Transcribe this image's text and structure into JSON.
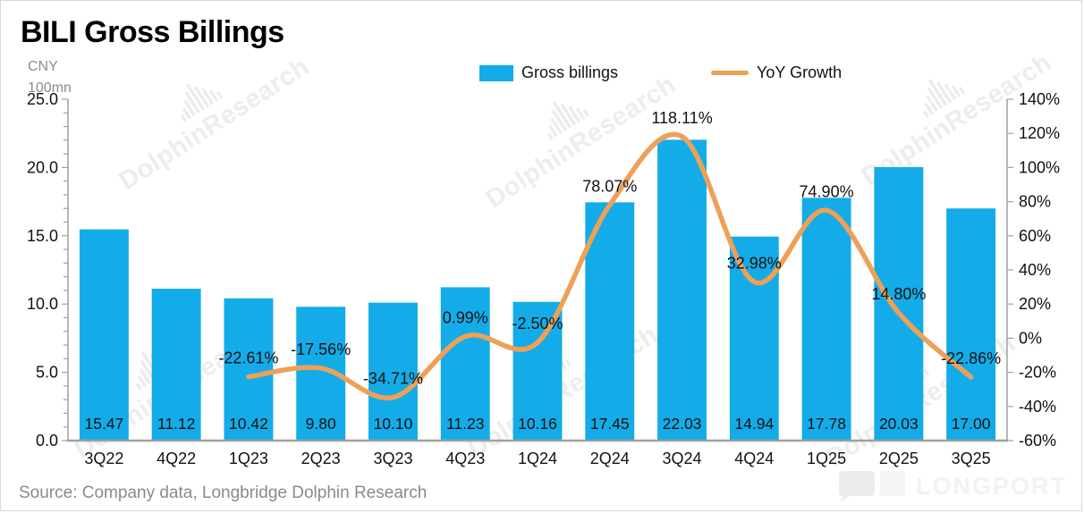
{
  "card": {
    "title": "BILI Gross Billings",
    "unit": [
      "CNY",
      "100mn"
    ],
    "source": "Source: Company data, Longbridge Dolphin Research",
    "watermark_text": "DolphinResearch",
    "logo_text": "LONGPORT"
  },
  "legend": [
    {
      "label": "Gross billings",
      "swatch": "bar"
    },
    {
      "label": "YoY Growth",
      "swatch": "line"
    }
  ],
  "colors": {
    "bar": "#14ACE8",
    "line": "#EFA057",
    "axis": "#A0A0A0",
    "label": "#111111",
    "muted": "#8A8A8A",
    "watermark": "#ECECEC",
    "logo": "#EFEFEF"
  },
  "chart_data": {
    "type": "bar",
    "title": "BILI Gross Billings",
    "legend_position": "top",
    "categories": [
      "3Q22",
      "4Q22",
      "1Q23",
      "2Q23",
      "3Q23",
      "4Q23",
      "1Q24",
      "2Q24",
      "3Q24",
      "4Q24",
      "1Q25",
      "2Q25",
      "3Q25"
    ],
    "series": [
      {
        "name": "Gross billings",
        "type": "bar",
        "axis": "left",
        "values": [
          15.47,
          11.12,
          10.42,
          9.8,
          10.1,
          11.23,
          10.16,
          17.45,
          22.03,
          14.94,
          17.78,
          20.03,
          17.0
        ],
        "labels": [
          "15.47",
          "11.12",
          "10.42",
          "9.80",
          "10.10",
          "11.23",
          "10.16",
          "17.45",
          "22.03",
          "14.94",
          "17.78",
          "20.03",
          "17.00"
        ]
      },
      {
        "name": "YoY Growth",
        "type": "line",
        "axis": "right",
        "values": [
          null,
          null,
          -22.61,
          -17.56,
          -34.71,
          0.99,
          -2.5,
          78.07,
          118.11,
          32.98,
          74.9,
          14.8,
          -22.86
        ],
        "labels": [
          null,
          null,
          "-22.61%",
          "-17.56%",
          "-34.71%",
          "0.99%",
          "-2.50%",
          "78.07%",
          "118.11%",
          "32.98%",
          "74.90%",
          "14.80%",
          "-22.86%"
        ]
      }
    ],
    "left_axis": {
      "min": 0,
      "max": 25,
      "major_step": 5,
      "minor_step": 1,
      "ticks": [
        "0.0",
        "5.0",
        "10.0",
        "15.0",
        "20.0",
        "25.0"
      ]
    },
    "right_axis": {
      "min": -60,
      "max": 140,
      "major_step": 20,
      "ticks": [
        "-60%",
        "-40%",
        "-20%",
        "0%",
        "20%",
        "40%",
        "60%",
        "80%",
        "100%",
        "120%",
        "140%"
      ]
    }
  }
}
